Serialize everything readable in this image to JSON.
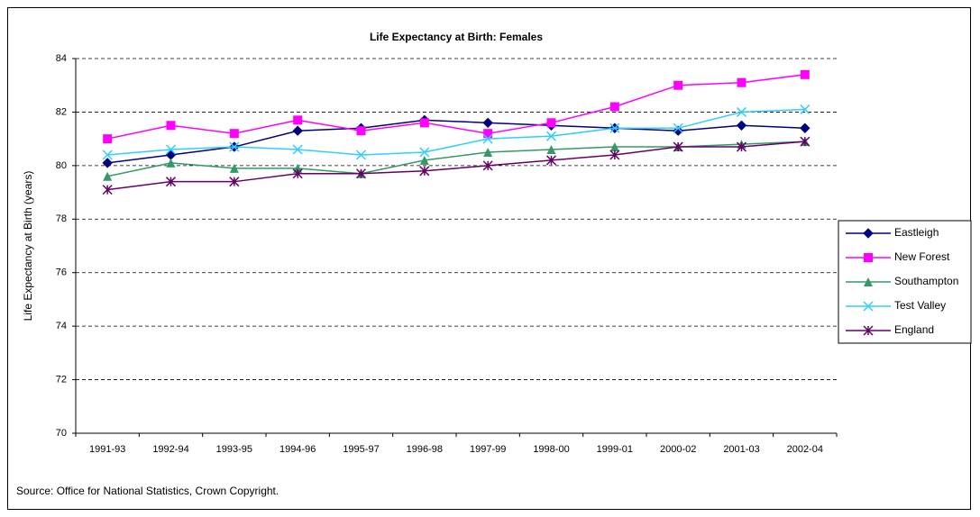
{
  "chart_data": {
    "type": "line",
    "title": "Life Expectancy at Birth: Females",
    "y_label": "Life Expectancy at Birth (years)",
    "note": "Source: Office for National Statistics, Crown Copyright.",
    "categories": [
      "1991-93",
      "1992-94",
      "1993-95",
      "1994-96",
      "1995-97",
      "1996-98",
      "1997-99",
      "1998-00",
      "1999-01",
      "2000-02",
      "2001-03",
      "2002-04"
    ],
    "series": [
      {
        "name": "Eastleigh",
        "color": "#000080",
        "marker": "diamond",
        "values": [
          80.1,
          80.4,
          80.7,
          81.3,
          81.4,
          81.7,
          81.6,
          81.5,
          81.4,
          81.3,
          81.5,
          81.4
        ]
      },
      {
        "name": "New Forest",
        "color": "#ff00ff",
        "marker": "square",
        "values": [
          81.0,
          81.5,
          81.2,
          81.7,
          81.3,
          81.6,
          81.2,
          81.6,
          82.2,
          83.0,
          83.1,
          83.4
        ]
      },
      {
        "name": "Southampton",
        "color": "#339966",
        "marker": "triangle",
        "values": [
          79.6,
          80.1,
          79.9,
          79.9,
          79.7,
          80.2,
          80.5,
          80.6,
          80.7,
          80.7,
          80.8,
          80.9
        ]
      },
      {
        "name": "Test Valley",
        "color": "#33ccff",
        "marker": "x",
        "values": [
          80.4,
          80.6,
          80.7,
          80.6,
          80.4,
          80.5,
          81.0,
          81.1,
          81.4,
          81.4,
          82.0,
          82.1
        ]
      },
      {
        "name": "England",
        "color": "#660066",
        "marker": "star",
        "values": [
          79.1,
          79.4,
          79.4,
          79.7,
          79.7,
          79.8,
          80.0,
          80.2,
          80.4,
          80.7,
          80.7,
          80.9
        ]
      }
    ],
    "ylim": [
      70,
      84
    ],
    "yticks": [
      70,
      72,
      74,
      76,
      78,
      80,
      82,
      84
    ],
    "grid": true,
    "legend": "right"
  }
}
